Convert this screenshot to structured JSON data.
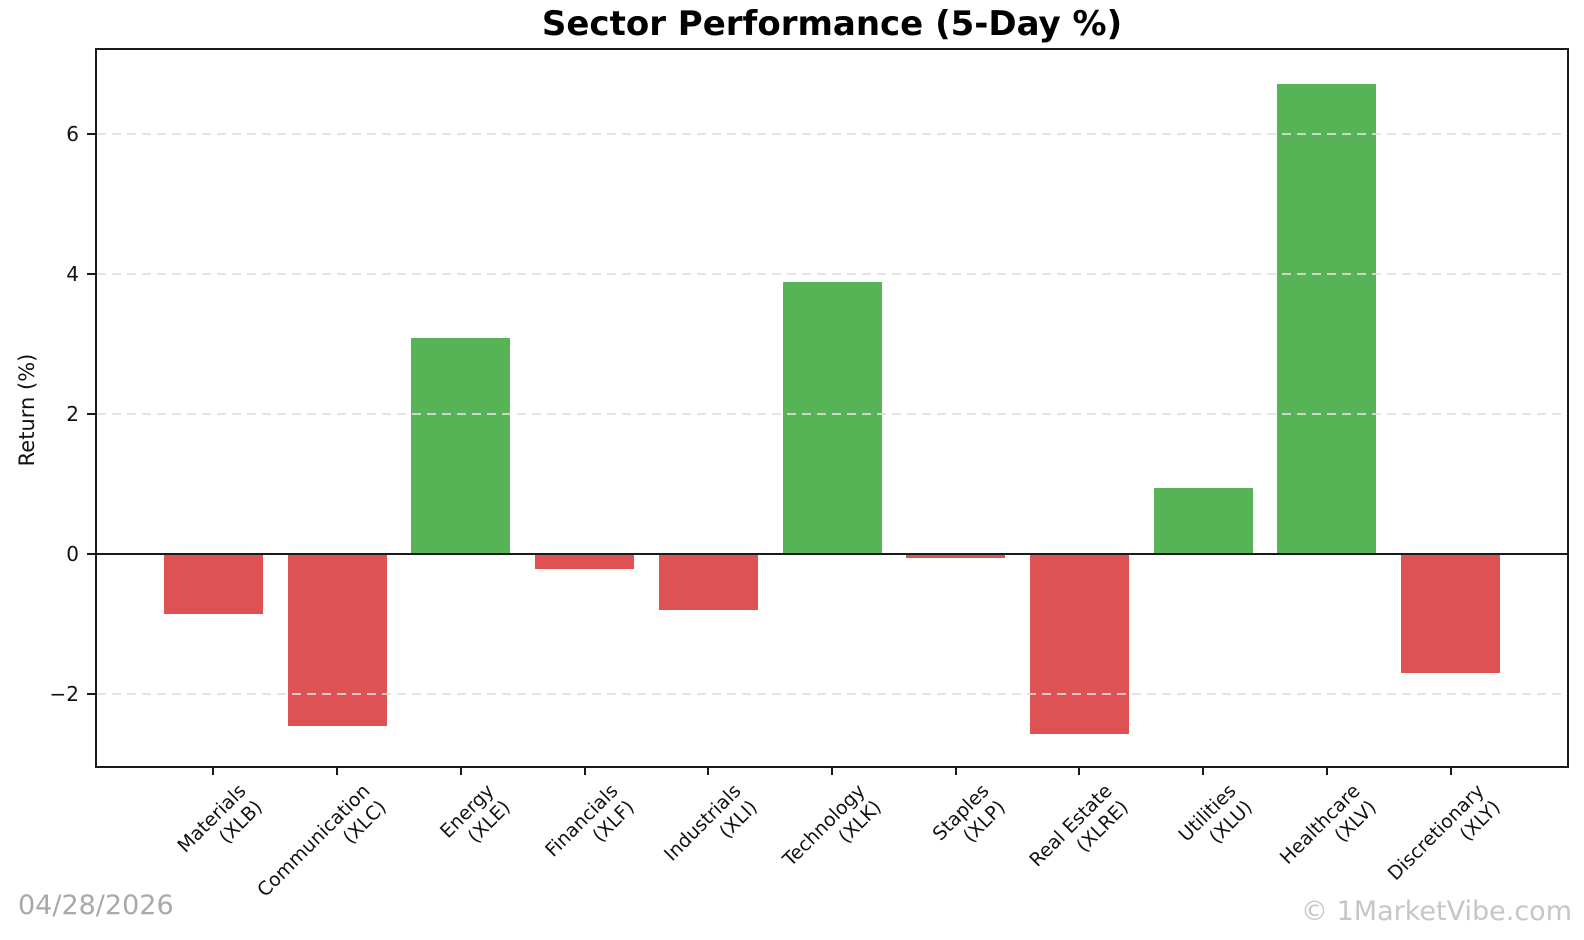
{
  "chart_data": {
    "type": "bar",
    "title": "Sector Performance (5-Day %)",
    "xlabel": "",
    "ylabel": "Return (%)",
    "categories": [
      {
        "sector": "Materials",
        "ticker": "(XLB)"
      },
      {
        "sector": "Communication",
        "ticker": "(XLC)"
      },
      {
        "sector": "Energy",
        "ticker": "(XLE)"
      },
      {
        "sector": "Financials",
        "ticker": "(XLF)"
      },
      {
        "sector": "Industrials",
        "ticker": "(XLI)"
      },
      {
        "sector": "Technology",
        "ticker": "(XLK)"
      },
      {
        "sector": "Staples",
        "ticker": "(XLP)"
      },
      {
        "sector": "Real Estate",
        "ticker": "(XLRE)"
      },
      {
        "sector": "Utilities",
        "ticker": "(XLU)"
      },
      {
        "sector": "Healthcare",
        "ticker": "(XLV)"
      },
      {
        "sector": "Discretionary",
        "ticker": "(XLY)"
      }
    ],
    "values": [
      -0.86,
      -2.46,
      3.08,
      -0.21,
      -0.8,
      3.88,
      -0.06,
      -2.58,
      0.94,
      6.72,
      -1.7
    ],
    "yticks": [
      6,
      4,
      2,
      0,
      -2
    ],
    "ylim": [
      -3.03,
      7.2
    ],
    "grid": "horizontal-dashed",
    "legend": "none",
    "colors": {
      "positive": "#56b356",
      "negative": "#de5253",
      "axis": "#1a1a1a",
      "gridline": "#dedede",
      "title_text": "#000000"
    }
  },
  "footer": {
    "date": "04/28/2026",
    "watermark": "© 1MarketVibe.com"
  }
}
